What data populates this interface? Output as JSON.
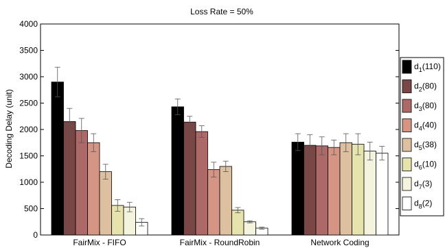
{
  "chart_data": {
    "type": "bar",
    "title": "Loss Rate = 50%",
    "xlabel": "",
    "ylabel": "Decoding Delay (unit)",
    "ylim": [
      0,
      4000
    ],
    "yticks": [
      0,
      500,
      1000,
      1500,
      2000,
      2500,
      3000,
      3500,
      4000
    ],
    "grid": false,
    "legend_position": "right",
    "error_bars": true,
    "categories": [
      "FairMix - FIFO",
      "FairMix - RoundRobin",
      "Network Coding"
    ],
    "series": [
      {
        "sub": "1",
        "suffix": "(110)",
        "color": "#000000",
        "values": [
          2900,
          2430,
          1760
        ],
        "errors": [
          280,
          150,
          160
        ]
      },
      {
        "sub": "2",
        "suffix": "(80)",
        "color": "#7a4747",
        "values": [
          2150,
          2140,
          1700
        ],
        "errors": [
          250,
          110,
          200
        ]
      },
      {
        "sub": "3",
        "suffix": "(80)",
        "color": "#ad6868",
        "values": [
          1980,
          1960,
          1690
        ],
        "errors": [
          230,
          110,
          170
        ]
      },
      {
        "sub": "4",
        "suffix": "(40)",
        "color": "#d59585",
        "values": [
          1750,
          1240,
          1660
        ],
        "errors": [
          170,
          140,
          140
        ]
      },
      {
        "sub": "5",
        "suffix": "(38)",
        "color": "#dcc0a0",
        "values": [
          1200,
          1300,
          1750
        ],
        "errors": [
          140,
          100,
          170
        ]
      },
      {
        "sub": "6",
        "suffix": "(10)",
        "color": "#e6e4ac",
        "values": [
          560,
          470,
          1720
        ],
        "errors": [
          110,
          50,
          200
        ]
      },
      {
        "sub": "7",
        "suffix": "(3)",
        "color": "#f4f4de",
        "values": [
          530,
          250,
          1590
        ],
        "errors": [
          90,
          20,
          170
        ]
      },
      {
        "sub": "8",
        "suffix": "(2)",
        "color": "#ffffff",
        "values": [
          240,
          130,
          1550
        ],
        "errors": [
          70,
          20,
          130
        ]
      }
    ]
  }
}
